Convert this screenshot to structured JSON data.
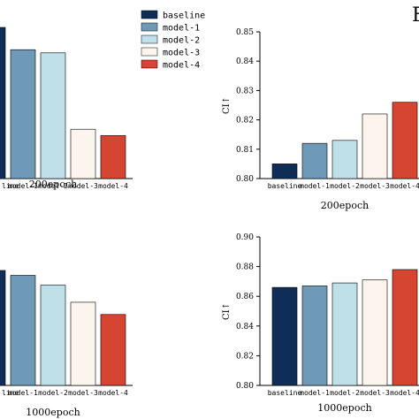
{
  "page_fragment": "F",
  "legend": {
    "items": [
      {
        "label": "baseline",
        "color": "#0f2e57"
      },
      {
        "label": "model-1",
        "color": "#6e9ab7"
      },
      {
        "label": "model-2",
        "color": "#bfdfe9"
      },
      {
        "label": "model-3",
        "color": "#fcf5ee"
      },
      {
        "label": "model-4",
        "color": "#d64432"
      }
    ]
  },
  "chart_data": [
    {
      "id": "top-left",
      "type": "bar",
      "title": "200epoch",
      "categories": [
        "baseline",
        "model-1",
        "model-2",
        "model-3",
        "model-4"
      ],
      "visible_category_labels": [
        "line",
        "model-1",
        "model-2",
        "model-3",
        "model-4"
      ],
      "values": [
        0.95,
        0.81,
        0.79,
        0.31,
        0.27
      ],
      "ylim": [
        0,
        1
      ],
      "ylabel": "",
      "yticks": []
    },
    {
      "id": "top-right",
      "type": "bar",
      "title": "200epoch",
      "categories": [
        "baseline",
        "model-1",
        "model-2",
        "model-3",
        "model-4"
      ],
      "values": [
        0.805,
        0.812,
        0.813,
        0.822,
        0.826
      ],
      "ylim": [
        0.8,
        0.85
      ],
      "ylabel": "CI↑",
      "yticks": [
        "0.80",
        "0.81",
        "0.82",
        "0.83",
        "0.84",
        "0.85"
      ]
    },
    {
      "id": "bottom-left",
      "type": "bar",
      "title": "1000epoch",
      "categories": [
        "baseline",
        "model-1",
        "model-2",
        "model-3",
        "model-4"
      ],
      "visible_category_labels": [
        "line",
        "model-1",
        "model-2",
        "model-3",
        "model-4"
      ],
      "values": [
        0.87,
        0.85,
        0.81,
        0.74,
        0.69
      ],
      "ylim": [
        0.4,
        1.0
      ],
      "ylabel": "",
      "yticks": []
    },
    {
      "id": "bottom-right",
      "type": "bar",
      "title": "1000epoch",
      "categories": [
        "baseline",
        "model-1",
        "model-2",
        "model-3",
        "model-4"
      ],
      "values": [
        0.866,
        0.867,
        0.869,
        0.871,
        0.878
      ],
      "ylim": [
        0.8,
        0.9
      ],
      "ylabel": "CI↑",
      "yticks": [
        "0.80",
        "0.82",
        "0.84",
        "0.86",
        "0.88",
        "0.90"
      ]
    }
  ]
}
